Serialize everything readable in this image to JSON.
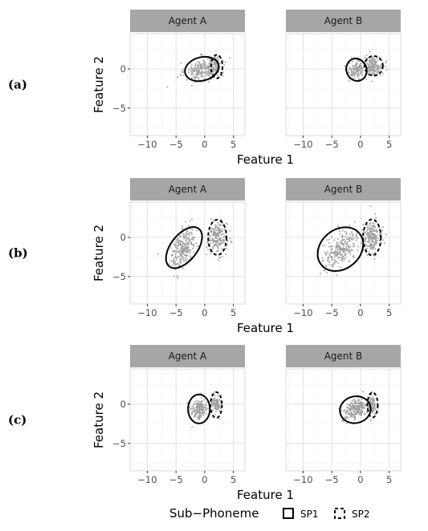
{
  "colors": {
    "strip_bg": "#a6a6a6",
    "grid_major": "#e0e0e0",
    "grid_minor": "#f0f0f0",
    "points": "#a0a0a0",
    "ellipse": "#000000",
    "panel_border": "#cfcfcf"
  },
  "chart_data": {
    "type": "scatter",
    "facet_columns": [
      "Agent A",
      "Agent B"
    ],
    "xlabel": "Feature 1",
    "ylabel": "Feature 2",
    "xlim": [
      -13,
      7
    ],
    "ylim": [
      -8.5,
      4.5
    ],
    "x_ticks": [
      -10,
      -5,
      0,
      5
    ],
    "x_tick_labels": [
      "−10",
      "−5",
      "0",
      "5"
    ],
    "y_ticks": [
      0,
      -5
    ],
    "y_tick_labels": [
      "0",
      "−5"
    ],
    "grid": true,
    "legend": {
      "title": "Sub−Phoneme",
      "position": "bottom",
      "items": [
        {
          "label": "SP1",
          "linetype": "solid"
        },
        {
          "label": "SP2",
          "linetype": "dashed"
        }
      ]
    },
    "rows": [
      {
        "label": "(a)",
        "panels": [
          {
            "agent": "Agent A",
            "clusters": [
              {
                "series": "SP1",
                "mean": [
                  -0.5,
                  0.0
                ],
                "sd": [
                  1.5,
                  0.75
                ],
                "corr": 0.35,
                "n": 220,
                "ellipse": {
                  "cx": -0.5,
                  "cy": 0.0,
                  "rx": 3.0,
                  "ry": 1.5,
                  "angle": 15
                }
              },
              {
                "series": "SP2",
                "mean": [
                  2.0,
                  0.3
                ],
                "sd": [
                  0.55,
                  0.7
                ],
                "corr": 0.0,
                "n": 90,
                "ellipse": {
                  "cx": 2.1,
                  "cy": 0.3,
                  "rx": 1.0,
                  "ry": 1.5,
                  "angle": 0
                }
              }
            ],
            "outliers": [
              [
                -6.5,
                -2.3
              ],
              [
                -4.2,
                -0.8
              ],
              [
                -3.1,
                -1.4
              ],
              [
                3.6,
                0.9
              ]
            ]
          },
          {
            "agent": "Agent B",
            "clusters": [
              {
                "series": "SP1",
                "mean": [
                  -0.7,
                  -0.1
                ],
                "sd": [
                  0.8,
                  0.65
                ],
                "corr": 0.3,
                "n": 130,
                "ellipse": {
                  "cx": -0.7,
                  "cy": -0.1,
                  "rx": 1.75,
                  "ry": 1.45,
                  "angle": 20
                }
              },
              {
                "series": "SP2",
                "mean": [
                  2.2,
                  0.4
                ],
                "sd": [
                  0.8,
                  0.6
                ],
                "corr": 0.0,
                "n": 180,
                "ellipse": {
                  "cx": 2.3,
                  "cy": 0.4,
                  "rx": 1.6,
                  "ry": 1.25,
                  "angle": 0
                }
              }
            ],
            "outliers": [
              [
                4.4,
                0.8
              ],
              [
                1.0,
                -1.3
              ]
            ]
          }
        ]
      },
      {
        "label": "(b)",
        "panels": [
          {
            "agent": "Agent A",
            "clusters": [
              {
                "series": "SP1",
                "mean": [
                  -3.7,
                  -1.3
                ],
                "sd": [
                  1.05,
                  1.25
                ],
                "corr": 0.5,
                "n": 260,
                "ellipse": {
                  "cx": -3.6,
                  "cy": -1.3,
                  "rx": 2.3,
                  "ry": 3.05,
                  "angle": -38
                }
              },
              {
                "series": "SP2",
                "mean": [
                  2.2,
                  0.0
                ],
                "sd": [
                  0.85,
                  0.95
                ],
                "corr": 0.0,
                "n": 200,
                "ellipse": {
                  "cx": 2.2,
                  "cy": 0.0,
                  "rx": 1.6,
                  "ry": 2.25,
                  "angle": 0
                }
              }
            ],
            "outliers": [
              [
                -8.1,
                -2.1
              ],
              [
                -4.7,
                -5.2
              ],
              [
                -2.6,
                2.1
              ],
              [
                2.4,
                -2.9
              ]
            ]
          },
          {
            "agent": "Agent B",
            "clusters": [
              {
                "series": "SP1",
                "mean": [
                  -3.4,
                  -1.5
                ],
                "sd": [
                  1.45,
                  1.15
                ],
                "corr": 0.5,
                "n": 260,
                "ellipse": {
                  "cx": -3.5,
                  "cy": -1.5,
                  "rx": 4.3,
                  "ry": 2.5,
                  "angle": 40
                }
              },
              {
                "series": "SP2",
                "mean": [
                  2.0,
                  0.0
                ],
                "sd": [
                  0.8,
                  0.9
                ],
                "corr": 0.0,
                "n": 200,
                "ellipse": {
                  "cx": 2.0,
                  "cy": 0.0,
                  "rx": 1.55,
                  "ry": 2.3,
                  "angle": 0
                }
              }
            ],
            "outliers": [
              [
                -7.5,
                -1.6
              ],
              [
                -6.0,
                -3.6
              ],
              [
                -1.0,
                2.0
              ],
              [
                1.8,
                4.0
              ],
              [
                3.7,
                0.5
              ]
            ]
          }
        ]
      },
      {
        "label": "(c)",
        "panels": [
          {
            "agent": "Agent A",
            "clusters": [
              {
                "series": "SP1",
                "mean": [
                  -1.0,
                  -0.6
                ],
                "sd": [
                  0.75,
                  0.6
                ],
                "corr": 0.1,
                "n": 170,
                "ellipse": {
                  "cx": -1.0,
                  "cy": -0.6,
                  "rx": 1.9,
                  "ry": 1.85,
                  "angle": 0
                }
              },
              {
                "series": "SP2",
                "mean": [
                  2.0,
                  0.0
                ],
                "sd": [
                  0.45,
                  0.6
                ],
                "corr": 0.0,
                "n": 90,
                "ellipse": {
                  "cx": 2.0,
                  "cy": -0.1,
                  "rx": 1.0,
                  "ry": 1.65,
                  "angle": 0
                }
              }
            ],
            "outliers": [
              [
                -2.2,
                -2.9
              ],
              [
                -0.6,
                1.4
              ],
              [
                2.6,
                -1.9
              ]
            ]
          },
          {
            "agent": "Agent B",
            "clusters": [
              {
                "series": "SP1",
                "mean": [
                  -0.9,
                  -0.7
                ],
                "sd": [
                  1.05,
                  0.65
                ],
                "corr": 0.35,
                "n": 220,
                "ellipse": {
                  "cx": -0.9,
                  "cy": -0.7,
                  "rx": 2.7,
                  "ry": 1.7,
                  "angle": 12
                }
              },
              {
                "series": "SP2",
                "mean": [
                  2.0,
                  -0.1
                ],
                "sd": [
                  0.4,
                  0.6
                ],
                "corr": 0.0,
                "n": 80,
                "ellipse": {
                  "cx": 2.1,
                  "cy": -0.1,
                  "rx": 0.9,
                  "ry": 1.6,
                  "angle": 0
                }
              }
            ],
            "outliers": [
              [
                0.4,
                1.6
              ],
              [
                -3.2,
                -2.1
              ]
            ]
          }
        ]
      }
    ]
  }
}
